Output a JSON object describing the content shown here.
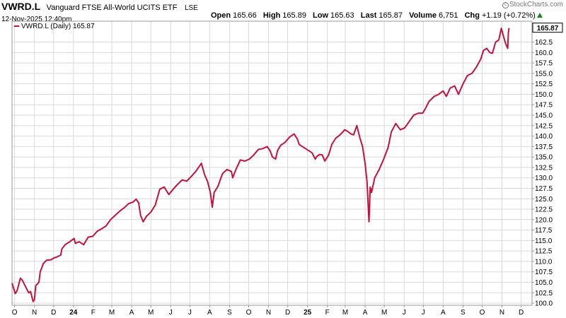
{
  "header": {
    "symbol": "VWRD.L",
    "name": "Vanguard FTSE All-World UCITS ETF",
    "exchange": "LSE",
    "datetime": "12-Nov-2025 12:40pm",
    "watermark": "StockCharts.com",
    "quote": {
      "open_label": "Open",
      "open": "165.66",
      "high_label": "High",
      "high": "165.89",
      "low_label": "Low",
      "low": "165.63",
      "last_label": "Last",
      "last": "165.87",
      "volume_label": "Volume",
      "volume": "6,751",
      "chg_label": "Chg",
      "chg": "+1.19 (+0.72%)"
    }
  },
  "colors": {
    "series": "#c8103c",
    "grid": "#d9d9d9",
    "frame": "#999999",
    "up": "#1a8a1a"
  },
  "chart_data": {
    "type": "line",
    "legend": "VWRD.L (Daily) 165.87",
    "last_value_label": "165.87",
    "y_ticks": [
      "100.0",
      "102.5",
      "105.0",
      "107.5",
      "110.0",
      "112.5",
      "115.0",
      "117.5",
      "120.0",
      "122.5",
      "125.0",
      "127.5",
      "130.0",
      "132.5",
      "135.0",
      "137.5",
      "140.0",
      "142.5",
      "145.0",
      "147.5",
      "150.0",
      "152.5",
      "155.0",
      "157.5",
      "160.0",
      "162.5"
    ],
    "x_ticks": [
      "O",
      "N",
      "D",
      "24",
      "F",
      "M",
      "A",
      "M",
      "J",
      "J",
      "A",
      "S",
      "O",
      "N",
      "D",
      "25",
      "F",
      "M",
      "A",
      "M",
      "J",
      "J",
      "A",
      "S",
      "O",
      "N",
      "D"
    ],
    "x_grid_months": [
      "2023-10",
      "2023-11",
      "2023-12",
      "2024-01",
      "2024-02",
      "2024-03",
      "2024-04",
      "2024-05",
      "2024-06",
      "2024-07",
      "2024-08",
      "2024-09",
      "2024-10",
      "2024-11",
      "2024-12",
      "2025-01",
      "2025-02",
      "2025-03",
      "2025-04",
      "2025-05",
      "2025-06",
      "2025-07",
      "2025-08",
      "2025-09",
      "2025-10",
      "2025-11",
      "2025-12"
    ],
    "ylim": [
      99.5,
      167.5
    ],
    "xlim": [
      "2023-09-27",
      "2025-12-18"
    ],
    "series": [
      {
        "name": "VWRD.L",
        "points": [
          [
            "2023-09-27",
            104.8
          ],
          [
            "2023-10-02",
            102.3
          ],
          [
            "2023-10-05",
            103.0
          ],
          [
            "2023-10-10",
            106.0
          ],
          [
            "2023-10-13",
            105.5
          ],
          [
            "2023-10-18",
            104.0
          ],
          [
            "2023-10-23",
            102.5
          ],
          [
            "2023-10-26",
            102.8
          ],
          [
            "2023-10-30",
            100.4
          ],
          [
            "2023-11-01",
            100.8
          ],
          [
            "2023-11-03",
            104.2
          ],
          [
            "2023-11-08",
            105.0
          ],
          [
            "2023-11-10",
            107.5
          ],
          [
            "2023-11-15",
            109.5
          ],
          [
            "2023-11-20",
            110.3
          ],
          [
            "2023-11-27",
            110.4
          ],
          [
            "2023-12-01",
            110.8
          ],
          [
            "2023-12-05",
            111.0
          ],
          [
            "2023-12-12",
            111.5
          ],
          [
            "2023-12-14",
            113.0
          ],
          [
            "2023-12-19",
            114.0
          ],
          [
            "2023-12-27",
            114.8
          ],
          [
            "2024-01-02",
            115.5
          ],
          [
            "2024-01-04",
            114.3
          ],
          [
            "2024-01-10",
            114.7
          ],
          [
            "2024-01-17",
            114.0
          ],
          [
            "2024-01-24",
            115.8
          ],
          [
            "2024-01-31",
            116.0
          ],
          [
            "2024-02-07",
            117.2
          ],
          [
            "2024-02-14",
            117.8
          ],
          [
            "2024-02-21",
            118.5
          ],
          [
            "2024-02-28",
            120.0
          ],
          [
            "2024-03-06",
            121.0
          ],
          [
            "2024-03-13",
            122.0
          ],
          [
            "2024-03-20",
            122.8
          ],
          [
            "2024-03-27",
            123.8
          ],
          [
            "2024-04-03",
            124.2
          ],
          [
            "2024-04-08",
            124.9
          ],
          [
            "2024-04-12",
            124.0
          ],
          [
            "2024-04-15",
            121.0
          ],
          [
            "2024-04-19",
            119.5
          ],
          [
            "2024-04-24",
            120.8
          ],
          [
            "2024-05-01",
            121.8
          ],
          [
            "2024-05-08",
            123.5
          ],
          [
            "2024-05-15",
            127.3
          ],
          [
            "2024-05-22",
            127.8
          ],
          [
            "2024-05-29",
            126.0
          ],
          [
            "2024-06-05",
            127.3
          ],
          [
            "2024-06-12",
            128.5
          ],
          [
            "2024-06-19",
            129.5
          ],
          [
            "2024-06-26",
            129.2
          ],
          [
            "2024-07-03",
            130.3
          ],
          [
            "2024-07-10",
            131.5
          ],
          [
            "2024-07-16",
            132.8
          ],
          [
            "2024-07-19",
            133.5
          ],
          [
            "2024-07-24",
            130.8
          ],
          [
            "2024-07-29",
            129.0
          ],
          [
            "2024-08-02",
            126.5
          ],
          [
            "2024-08-05",
            123.0
          ],
          [
            "2024-08-08",
            126.5
          ],
          [
            "2024-08-14",
            128.0
          ],
          [
            "2024-08-21",
            131.0
          ],
          [
            "2024-08-28",
            132.0
          ],
          [
            "2024-09-04",
            131.5
          ],
          [
            "2024-09-06",
            130.0
          ],
          [
            "2024-09-11",
            132.0
          ],
          [
            "2024-09-18",
            134.3
          ],
          [
            "2024-09-25",
            134.0
          ],
          [
            "2024-10-02",
            134.5
          ],
          [
            "2024-10-09",
            135.5
          ],
          [
            "2024-10-16",
            136.8
          ],
          [
            "2024-10-23",
            137.0
          ],
          [
            "2024-10-30",
            137.5
          ],
          [
            "2024-11-04",
            136.3
          ],
          [
            "2024-11-07",
            135.0
          ],
          [
            "2024-11-12",
            134.5
          ],
          [
            "2024-11-15",
            136.5
          ],
          [
            "2024-11-20",
            137.8
          ],
          [
            "2024-11-27",
            138.5
          ],
          [
            "2024-12-04",
            139.8
          ],
          [
            "2024-12-11",
            140.5
          ],
          [
            "2024-12-16",
            139.3
          ],
          [
            "2024-12-19",
            138.0
          ],
          [
            "2024-12-24",
            137.5
          ],
          [
            "2025-01-03",
            136.5
          ],
          [
            "2025-01-08",
            136.0
          ],
          [
            "2025-01-13",
            134.5
          ],
          [
            "2025-01-16",
            135.2
          ],
          [
            "2025-01-20",
            135.6
          ],
          [
            "2025-01-24",
            135.5
          ],
          [
            "2025-01-28",
            134.0
          ],
          [
            "2025-02-03",
            135.5
          ],
          [
            "2025-02-08",
            138.0
          ],
          [
            "2025-02-14",
            139.5
          ],
          [
            "2025-02-20",
            140.2
          ],
          [
            "2025-02-24",
            140.8
          ],
          [
            "2025-02-28",
            141.5
          ],
          [
            "2025-03-04",
            141.2
          ],
          [
            "2025-03-10",
            140.5
          ],
          [
            "2025-03-14",
            140.3
          ],
          [
            "2025-03-19",
            142.5
          ],
          [
            "2025-03-24",
            139.5
          ],
          [
            "2025-03-28",
            137.5
          ],
          [
            "2025-04-01",
            133.5
          ],
          [
            "2025-04-04",
            129.0
          ],
          [
            "2025-04-07",
            119.5
          ],
          [
            "2025-04-09",
            127.8
          ],
          [
            "2025-04-11",
            126.5
          ],
          [
            "2025-04-16",
            130.0
          ],
          [
            "2025-04-23",
            132.0
          ],
          [
            "2025-04-30",
            134.5
          ],
          [
            "2025-05-07",
            137.3
          ],
          [
            "2025-05-12",
            141.0
          ],
          [
            "2025-05-19",
            143.0
          ],
          [
            "2025-05-26",
            141.5
          ],
          [
            "2025-06-02",
            142.0
          ],
          [
            "2025-06-09",
            143.5
          ],
          [
            "2025-06-16",
            145.0
          ],
          [
            "2025-06-23",
            145.5
          ],
          [
            "2025-06-30",
            145.5
          ],
          [
            "2025-07-04",
            146.5
          ],
          [
            "2025-07-10",
            148.3
          ],
          [
            "2025-07-18",
            149.5
          ],
          [
            "2025-07-25",
            150.0
          ],
          [
            "2025-08-01",
            150.8
          ],
          [
            "2025-08-06",
            149.5
          ],
          [
            "2025-08-12",
            151.5
          ],
          [
            "2025-08-19",
            152.0
          ],
          [
            "2025-08-25",
            150.0
          ],
          [
            "2025-09-01",
            152.5
          ],
          [
            "2025-09-08",
            154.5
          ],
          [
            "2025-09-15",
            155.0
          ],
          [
            "2025-09-22",
            156.5
          ],
          [
            "2025-09-29",
            158.5
          ],
          [
            "2025-10-03",
            160.5
          ],
          [
            "2025-10-08",
            161.0
          ],
          [
            "2025-10-13",
            160.0
          ],
          [
            "2025-10-17",
            159.8
          ],
          [
            "2025-10-22",
            162.5
          ],
          [
            "2025-10-27",
            163.0
          ],
          [
            "2025-10-31",
            165.8
          ],
          [
            "2025-11-04",
            163.5
          ],
          [
            "2025-11-07",
            162.0
          ],
          [
            "2025-11-10",
            161.0
          ],
          [
            "2025-11-11",
            164.7
          ],
          [
            "2025-11-12",
            165.87
          ]
        ]
      }
    ]
  }
}
